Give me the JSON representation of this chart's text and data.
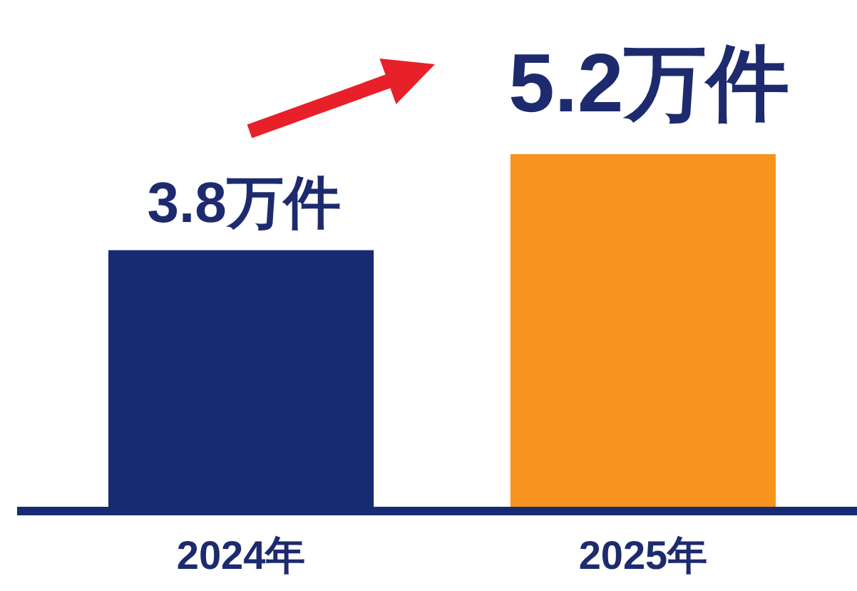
{
  "chart_data": {
    "type": "bar",
    "categories": [
      "2024年",
      "2025年"
    ],
    "values": [
      3.8,
      5.2
    ],
    "colors": [
      "#172b72",
      "#f7941d"
    ],
    "value_labels": [
      "3.8万件",
      "5.2万件"
    ],
    "tick_labels": "x"
  }
}
